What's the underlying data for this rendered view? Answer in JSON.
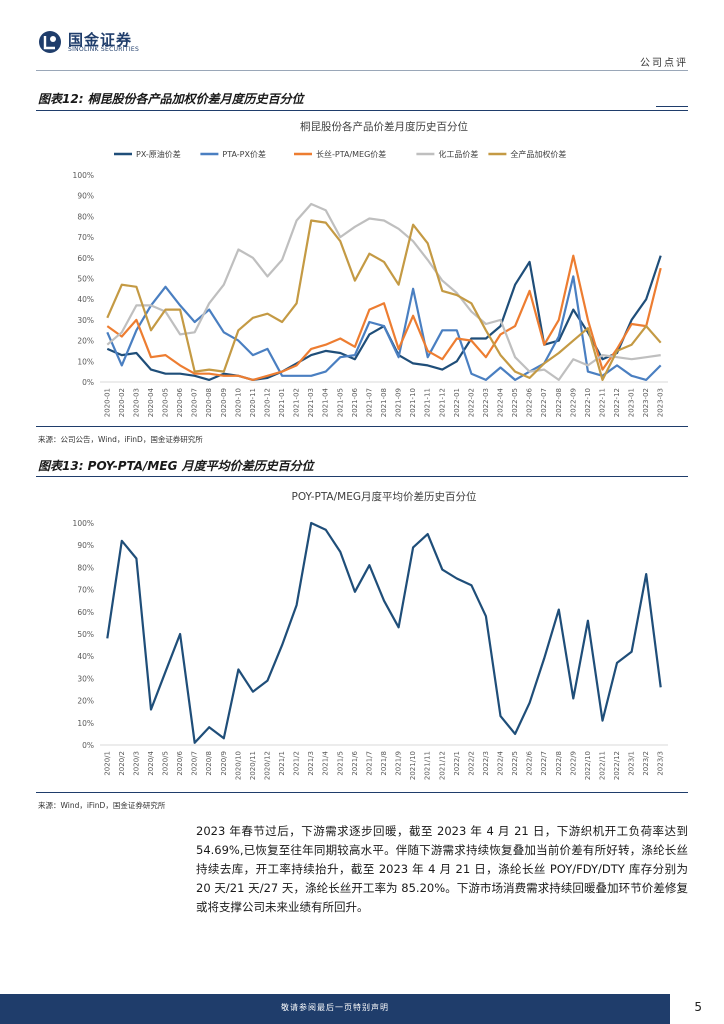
{
  "header": {
    "logo_cn": "国金证券",
    "logo_en": "SINOLINK SECURITIES",
    "report_type": "公司点评"
  },
  "figure12": {
    "caption": "图表12: 桐昆股份各产品加权价差月度历史百分位",
    "source": "来源：公司公告，Wind，iFinD，国金证券研究所"
  },
  "figure13": {
    "caption": "图表13: POY-PTA/MEG 月度平均价差历史百分位",
    "source": "来源：Wind，iFinD，国金证券研究所"
  },
  "body": {
    "paragraph": "2023 年春节过后，下游需求逐步回暖，截至 2023 年 4 月 21 日，下游织机开工负荷率达到 54.69%,已恢复至往年同期较高水平。伴随下游需求持续恢复叠加当前价差有所好转，涤纶长丝持续去库，开工率持续抬升，截至 2023 年 4 月 21 日，涤纶长丝 POY/FDY/DTY 库存分别为 20 天/21 天/27 天，涤纶长丝开工率为 85.20%。下游市场消费需求持续回暖叠加环节价差修复或将支撑公司未来业绩有所回升。"
  },
  "footer": {
    "disclaimer": "敬请参阅最后一页特别声明",
    "page": "5"
  },
  "chart_data": [
    {
      "type": "line",
      "title": "桐昆股份各产品价差月度历史百分位",
      "categories": [
        "2020-01",
        "2020-02",
        "2020-03",
        "2020-04",
        "2020-05",
        "2020-06",
        "2020-07",
        "2020-08",
        "2020-09",
        "2020-10",
        "2020-11",
        "2020-12",
        "2021-01",
        "2021-02",
        "2021-03",
        "2021-04",
        "2021-05",
        "2021-06",
        "2021-07",
        "2021-08",
        "2021-09",
        "2021-10",
        "2021-11",
        "2021-12",
        "2022-01",
        "2022-02",
        "2022-03",
        "2022-04",
        "2022-05",
        "2022-06",
        "2022-07",
        "2022-08",
        "2022-09",
        "2022-10",
        "2022-11",
        "2022-12",
        "2023-01",
        "2023-02",
        "2023-03"
      ],
      "yticks": [
        "0%",
        "10%",
        "20%",
        "30%",
        "40%",
        "50%",
        "60%",
        "70%",
        "80%",
        "90%",
        "100%"
      ],
      "ylim": [
        0,
        100
      ],
      "series": [
        {
          "name": "PX-原油价差",
          "color": "#1f4e79",
          "values": [
            16,
            13,
            14,
            6,
            4,
            4,
            3,
            1,
            4,
            3,
            1,
            2,
            5,
            9,
            13,
            15,
            14,
            11,
            23,
            27,
            13,
            9,
            8,
            6,
            10,
            21,
            21,
            27,
            47,
            58,
            18,
            20,
            35,
            24,
            11,
            14,
            30,
            40,
            61
          ]
        },
        {
          "name": "PTA-PX价差",
          "color": "#4a7fc1",
          "values": [
            24,
            8,
            25,
            37,
            46,
            37,
            29,
            35,
            24,
            20,
            13,
            16,
            3,
            3,
            3,
            5,
            12,
            13,
            29,
            27,
            12,
            45,
            12,
            25,
            25,
            4,
            1,
            7,
            1,
            5,
            9,
            22,
            51,
            5,
            3,
            8,
            3,
            1,
            8
          ]
        },
        {
          "name": "长丝-PTA/MEG价差",
          "color": "#ed7d31",
          "values": [
            27,
            22,
            30,
            12,
            13,
            8,
            4,
            4,
            3,
            3,
            1,
            3,
            5,
            8,
            16,
            18,
            21,
            17,
            35,
            38,
            16,
            32,
            15,
            11,
            21,
            20,
            12,
            23,
            27,
            44,
            18,
            30,
            61,
            30,
            6,
            16,
            28,
            27,
            55
          ]
        },
        {
          "name": "化工品价差",
          "color": "#bfbfbf",
          "values": [
            18,
            24,
            37,
            37,
            34,
            23,
            24,
            38,
            47,
            64,
            60,
            51,
            59,
            78,
            86,
            83,
            70,
            75,
            79,
            78,
            74,
            68,
            59,
            49,
            43,
            34,
            28,
            30,
            12,
            5,
            6,
            1,
            11,
            8,
            13,
            12,
            11,
            12,
            13
          ]
        },
        {
          "name": "全产品加权价差",
          "color": "#c49a44",
          "values": [
            31,
            47,
            46,
            25,
            35,
            35,
            5,
            6,
            5,
            25,
            31,
            33,
            29,
            38,
            78,
            77,
            68,
            49,
            62,
            58,
            47,
            76,
            67,
            44,
            42,
            38,
            25,
            13,
            5,
            2,
            9,
            14,
            20,
            26,
            1,
            15,
            18,
            27,
            19
          ]
        }
      ]
    },
    {
      "type": "line",
      "title": "POY-PTA/MEG月度平均价差历史百分位",
      "categories": [
        "2020/1",
        "2020/2",
        "2020/3",
        "2020/4",
        "2020/5",
        "2020/6",
        "2020/7",
        "2020/8",
        "2020/9",
        "2020/10",
        "2020/11",
        "2020/12",
        "2021/1",
        "2021/2",
        "2021/3",
        "2021/4",
        "2021/5",
        "2021/6",
        "2021/7",
        "2021/8",
        "2021/9",
        "2021/10",
        "2021/11",
        "2021/12",
        "2022/1",
        "2022/2",
        "2022/3",
        "2022/4",
        "2022/5",
        "2022/6",
        "2022/7",
        "2022/8",
        "2022/9",
        "2022/10",
        "2022/11",
        "2022/12",
        "2023/1",
        "2023/2",
        "2023/3"
      ],
      "yticks": [
        "0%",
        "10%",
        "20%",
        "30%",
        "40%",
        "50%",
        "60%",
        "70%",
        "80%",
        "90%",
        "100%"
      ],
      "ylim": [
        0,
        100
      ],
      "series": [
        {
          "name": "POY-PTA/MEG",
          "color": "#1f4e79",
          "values": [
            48,
            92,
            84,
            16,
            33,
            50,
            1,
            8,
            3,
            34,
            24,
            29,
            45,
            63,
            100,
            97,
            87,
            69,
            81,
            65,
            53,
            89,
            95,
            79,
            75,
            72,
            58,
            13,
            5,
            19,
            39,
            61,
            21,
            56,
            11,
            37,
            42,
            77,
            26
          ]
        }
      ]
    }
  ]
}
